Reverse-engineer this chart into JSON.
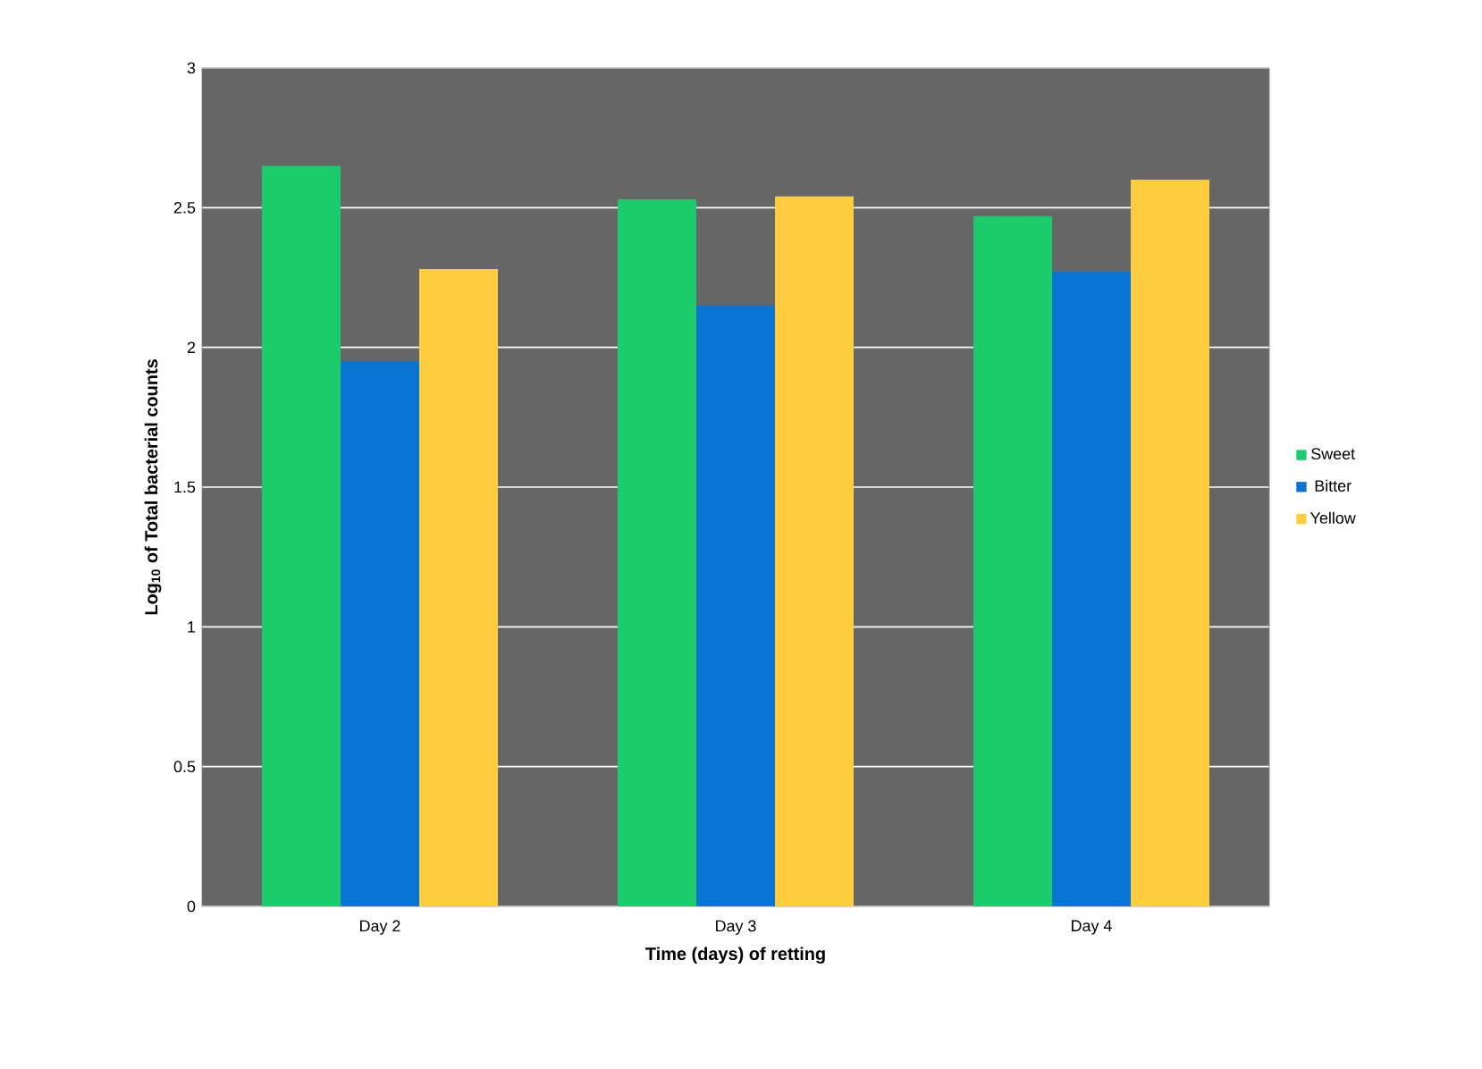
{
  "chart_data": {
    "type": "bar",
    "xlabel": "Time (days) of retting",
    "ylabel": "Log$_{10}$ of Total bacterial counts",
    "categories": [
      "Day 2",
      "Day 3",
      "Day 4"
    ],
    "series": [
      {
        "name": "Sweet",
        "color": "#1ccb6b",
        "values": [
          2.65,
          2.53,
          2.47
        ]
      },
      {
        "name": "Bitter",
        "color": "#0a74d3",
        "values": [
          1.95,
          2.15,
          2.27
        ]
      },
      {
        "name": "Yellow",
        "color": "#fecc3f",
        "values": [
          2.28,
          2.54,
          2.6
        ]
      }
    ],
    "ylim": [
      0,
      3
    ],
    "yticks": [
      0,
      0.5,
      1,
      1.5,
      2,
      2.5,
      3
    ],
    "grid": "y",
    "legend": "right"
  }
}
